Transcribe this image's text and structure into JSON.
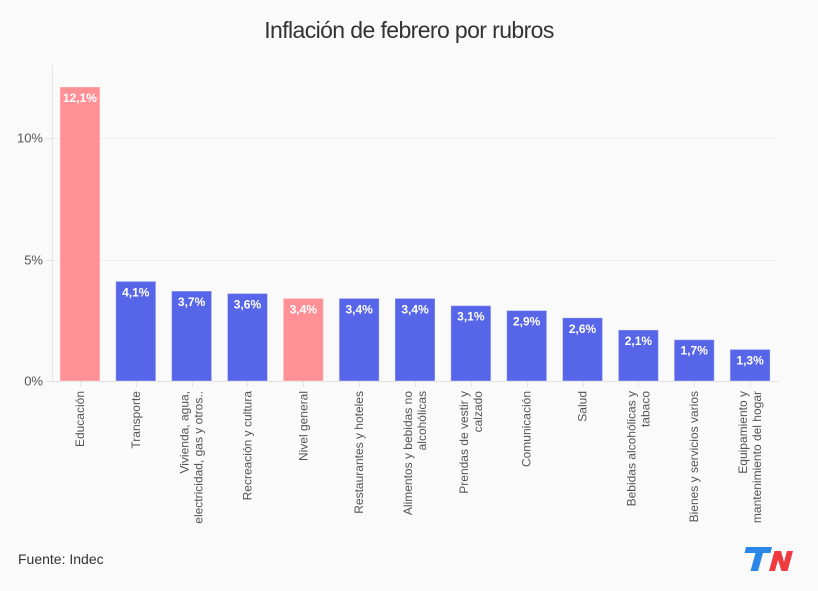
{
  "colors": {
    "highlight": "#ff9196",
    "default": "#5766e8",
    "text": "#333333",
    "axis_text": "#555555",
    "grid": "#eeeeee",
    "logo_blue": "#2a87e8",
    "logo_red": "#ef3b3f"
  },
  "source": "Fuente: Indec",
  "logo_text": "TN",
  "chart_data": {
    "type": "bar",
    "title": "Inflación de febrero por rubros",
    "xlabel": "",
    "ylabel": "",
    "ylim": [
      0,
      12.5
    ],
    "yticks": [
      0,
      5,
      10
    ],
    "ytick_labels": [
      "0%",
      "5%",
      "10%"
    ],
    "grid": true,
    "categories": [
      "Educación",
      "Transporte",
      "Vivienda, agua, electricidad, gas y otros..",
      "Recreación y cultura",
      "Nivel general",
      "Restaurantes y hoteles",
      "Alimentos y bebidas no alcohólicas",
      "Prendas de vestir y calzado",
      "Comunicación",
      "Salud",
      "Bebidas alcohólicas y tabaco",
      "Bienes y servicios varios",
      "Equipamiento y mantenimiento del hogar"
    ],
    "category_label_lines": [
      [
        "Educación"
      ],
      [
        "Transporte"
      ],
      [
        "Vivienda, agua,",
        "electricidad, gas y otros.."
      ],
      [
        "Recreación y cultura"
      ],
      [
        "Nivel general"
      ],
      [
        "Restaurantes y hoteles"
      ],
      [
        "Alimentos y bebidas no",
        "alcohólicas"
      ],
      [
        "Prendas de vestir y",
        "calzado"
      ],
      [
        "Comunicación"
      ],
      [
        "Salud"
      ],
      [
        "Bebidas alcohólicas y",
        "tabaco"
      ],
      [
        "Bienes y servicios varios"
      ],
      [
        "Equipamiento y",
        "mantenimiento del hogar"
      ]
    ],
    "values": [
      12.1,
      4.1,
      3.7,
      3.6,
      3.4,
      3.4,
      3.4,
      3.1,
      2.9,
      2.6,
      2.1,
      1.7,
      1.3
    ],
    "value_labels": [
      "12,1%",
      "4,1%",
      "3,7%",
      "3,6%",
      "3,4%",
      "3,4%",
      "3,4%",
      "3,1%",
      "2,9%",
      "2,6%",
      "2,1%",
      "1,7%",
      "1,3%"
    ],
    "highlighted": [
      true,
      false,
      false,
      false,
      true,
      false,
      false,
      false,
      false,
      false,
      false,
      false,
      false
    ],
    "legend": "none"
  }
}
